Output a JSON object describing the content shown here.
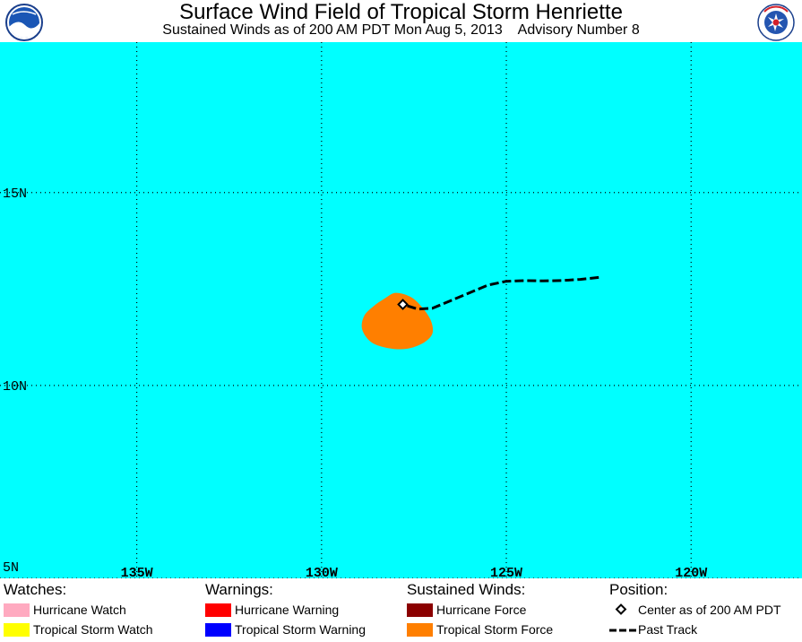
{
  "header": {
    "title": "Surface Wind Field of Tropical Storm Henriette",
    "subtitle": "Sustained Winds as of 200 AM PDT Mon Aug 5, 2013    Advisory Number 8",
    "left_logo_text": "NOAA",
    "right_logo_text": "NATIONAL WEATHER SERVICE"
  },
  "map": {
    "ocean_color": "#00ffff",
    "grid_color": "#000000",
    "lon_range": [
      -138.7,
      -117.0
    ],
    "lat_range": [
      5.0,
      18.9
    ],
    "lon_labels": [
      {
        "value": -135,
        "label": "135W"
      },
      {
        "value": -130,
        "label": "130W"
      },
      {
        "value": -125,
        "label": "125W"
      },
      {
        "value": -120,
        "label": "120W"
      }
    ],
    "lat_labels": [
      {
        "value": 15,
        "label": "15N"
      },
      {
        "value": 10,
        "label": "10N"
      },
      {
        "value": 5,
        "label": "5N"
      }
    ],
    "center": {
      "lon": -127.8,
      "lat": 12.1
    },
    "wind_field_color": "#ff7f00",
    "tropical_storm_wind_field": [
      [
        -128.0,
        12.4
      ],
      [
        -127.6,
        12.3
      ],
      [
        -127.3,
        12.05
      ],
      [
        -127.05,
        11.7
      ],
      [
        -127.0,
        11.35
      ],
      [
        -127.25,
        11.1
      ],
      [
        -127.7,
        10.95
      ],
      [
        -128.2,
        10.97
      ],
      [
        -128.65,
        11.12
      ],
      [
        -128.9,
        11.45
      ],
      [
        -128.85,
        11.8
      ],
      [
        -128.6,
        12.05
      ],
      [
        -128.3,
        12.25
      ]
    ],
    "past_track": [
      [
        -122.5,
        12.8
      ],
      [
        -123.0,
        12.75
      ],
      [
        -123.5,
        12.72
      ],
      [
        -124.0,
        12.71
      ],
      [
        -124.5,
        12.72
      ],
      [
        -125.0,
        12.7
      ],
      [
        -125.5,
        12.6
      ],
      [
        -126.0,
        12.4
      ],
      [
        -126.5,
        12.2
      ],
      [
        -127.0,
        12.0
      ],
      [
        -127.4,
        11.98
      ],
      [
        -127.8,
        12.1
      ]
    ]
  },
  "legend": {
    "watches": {
      "heading": "Watches:",
      "items": [
        {
          "label": "Hurricane Watch",
          "color": "#ffaac0"
        },
        {
          "label": "Tropical Storm Watch",
          "color": "#ffff00"
        }
      ]
    },
    "warnings": {
      "heading": "Warnings:",
      "items": [
        {
          "label": "Hurricane Warning",
          "color": "#ff0000"
        },
        {
          "label": "Tropical Storm Warning",
          "color": "#0000ff"
        }
      ]
    },
    "winds": {
      "heading": "Sustained Winds:",
      "items": [
        {
          "label": "Hurricane Force",
          "color": "#8b0000"
        },
        {
          "label": "Tropical Storm Force",
          "color": "#ff7f00"
        }
      ]
    },
    "position": {
      "heading": "Position:",
      "center_label": "Center as of 200 AM PDT",
      "track_label": "Past Track"
    }
  }
}
